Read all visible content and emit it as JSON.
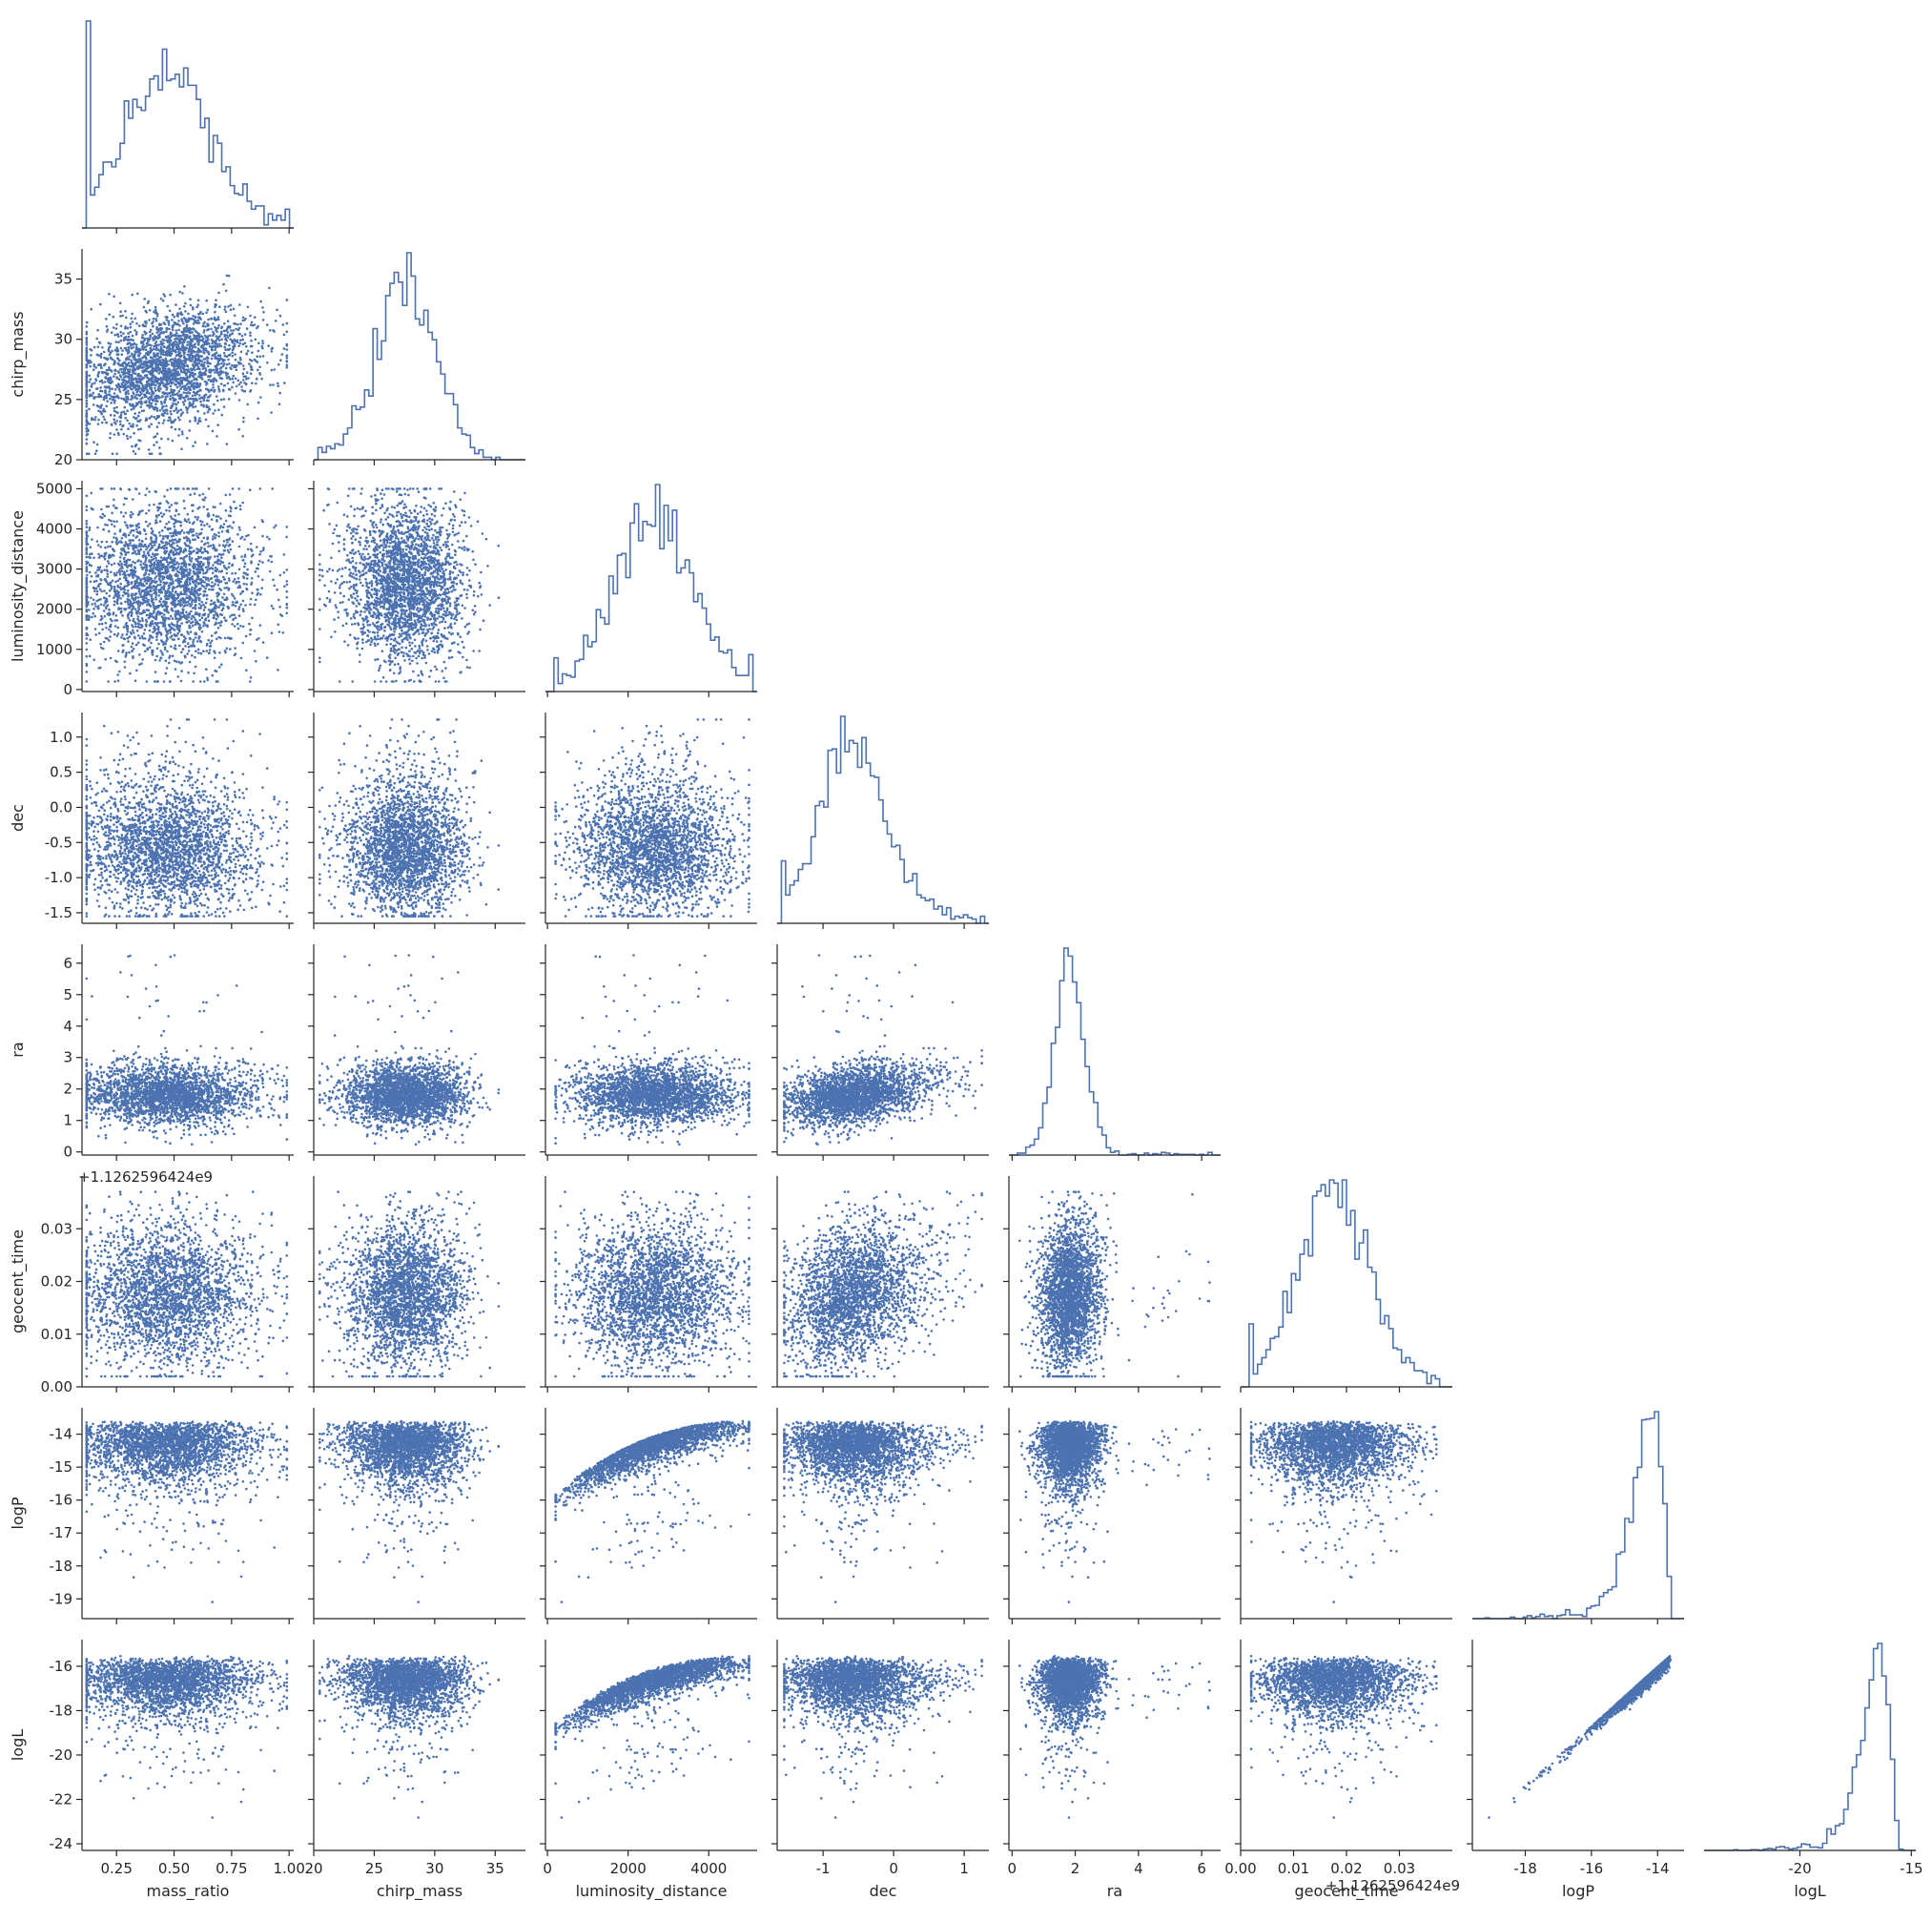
{
  "chart_data": {
    "type": "pairplot",
    "subtype": "corner",
    "variables": [
      {
        "name": "mass_ratio",
        "range": [
          0.1,
          1.02
        ],
        "ticks": [
          0.25,
          0.5,
          0.75,
          1.0
        ],
        "tick_labels": [
          "0.25",
          "0.50",
          "0.75",
          "1.00"
        ]
      },
      {
        "name": "chirp_mass",
        "range": [
          20,
          37.5
        ],
        "ticks": [
          20,
          25,
          30,
          35
        ],
        "tick_labels": [
          "20",
          "25",
          "30",
          "35"
        ]
      },
      {
        "name": "luminosity_distance",
        "range": [
          -50,
          5200
        ],
        "ticks": [
          0,
          1000,
          2000,
          3000,
          4000,
          5000
        ],
        "tick_labels": [
          "0",
          "2000",
          "4000"
        ],
        "tick_labels_y": [
          "0",
          "1000",
          "2000",
          "3000",
          "4000",
          "5000"
        ]
      },
      {
        "name": "dec",
        "range": [
          -1.65,
          1.35
        ],
        "ticks": [
          -1.5,
          -1.0,
          -0.5,
          0.0,
          0.5,
          1.0
        ],
        "tick_labels": [
          "-1",
          "0",
          "1"
        ],
        "tick_labels_y": [
          "-1.5",
          "-1.0",
          "-0.5",
          "0.0",
          "0.5",
          "1.0"
        ]
      },
      {
        "name": "ra",
        "range": [
          -0.1,
          6.6
        ],
        "ticks": [
          0,
          1,
          2,
          3,
          4,
          5,
          6
        ],
        "tick_labels": [
          "0",
          "2",
          "4",
          "6"
        ],
        "tick_labels_y": [
          "0",
          "1",
          "2",
          "3",
          "4",
          "5",
          "6"
        ]
      },
      {
        "name": "geocent_time",
        "range": [
          0.0,
          0.04
        ],
        "ticks": [
          0.0,
          0.01,
          0.02,
          0.03
        ],
        "tick_labels": [
          "0.00",
          "0.01",
          "0.02",
          "0.03"
        ],
        "offset_label": "+1.1262596424e9"
      },
      {
        "name": "logP",
        "range": [
          -19.6,
          -13.2
        ],
        "ticks": [
          -19,
          -18,
          -17,
          -16,
          -15,
          -14
        ],
        "tick_labels": [
          "-18",
          "-16",
          "-14"
        ],
        "tick_labels_y": [
          "-19",
          "-18",
          "-17",
          "-16",
          "-15",
          "-14"
        ]
      },
      {
        "name": "logL",
        "range": [
          -24.3,
          -14.8
        ],
        "ticks": [
          -24,
          -22,
          -20,
          -18,
          -16
        ],
        "tick_labels": [
          "-20",
          "-15"
        ],
        "tick_labels_y": [
          "-24",
          "-22",
          "-20",
          "-18",
          "-16"
        ]
      }
    ],
    "x_tick_values": {
      "mass_ratio": [
        0.25,
        0.5,
        0.75,
        1.0
      ],
      "chirp_mass": [
        20,
        25,
        30,
        35
      ],
      "luminosity_distance": [
        0,
        2000,
        4000
      ],
      "dec": [
        -1,
        0,
        1
      ],
      "ra": [
        0,
        2,
        4,
        6
      ],
      "geocent_time": [
        0.0,
        0.01,
        0.02,
        0.03
      ],
      "logP": [
        -18,
        -16,
        -14
      ],
      "logL": [
        -20,
        -15
      ]
    },
    "distributions": {
      "mass_ratio": {
        "mean": 0.47,
        "sd": 0.19,
        "min": 0.12,
        "max": 0.99
      },
      "chirp_mass": {
        "mean": 27.8,
        "sd": 2.6
      },
      "luminosity_distance": {
        "mean": 2650,
        "sd": 1000,
        "min": 200,
        "max": 5000
      },
      "dec": {
        "mode": -0.7,
        "min": -1.55,
        "max": 1.25
      },
      "ra": {
        "mean": 1.9,
        "sd": 0.45,
        "tail_max": 6.3
      },
      "geocent_time": {
        "mean": 0.018,
        "sd": 0.0065
      },
      "logP": {
        "mode": -13.6,
        "min": -19.3
      },
      "logL": {
        "mode": -15.6,
        "min": -24.0
      }
    },
    "color": "#4c72b0",
    "histogram_style": "step",
    "grid": false,
    "legend": "none"
  }
}
